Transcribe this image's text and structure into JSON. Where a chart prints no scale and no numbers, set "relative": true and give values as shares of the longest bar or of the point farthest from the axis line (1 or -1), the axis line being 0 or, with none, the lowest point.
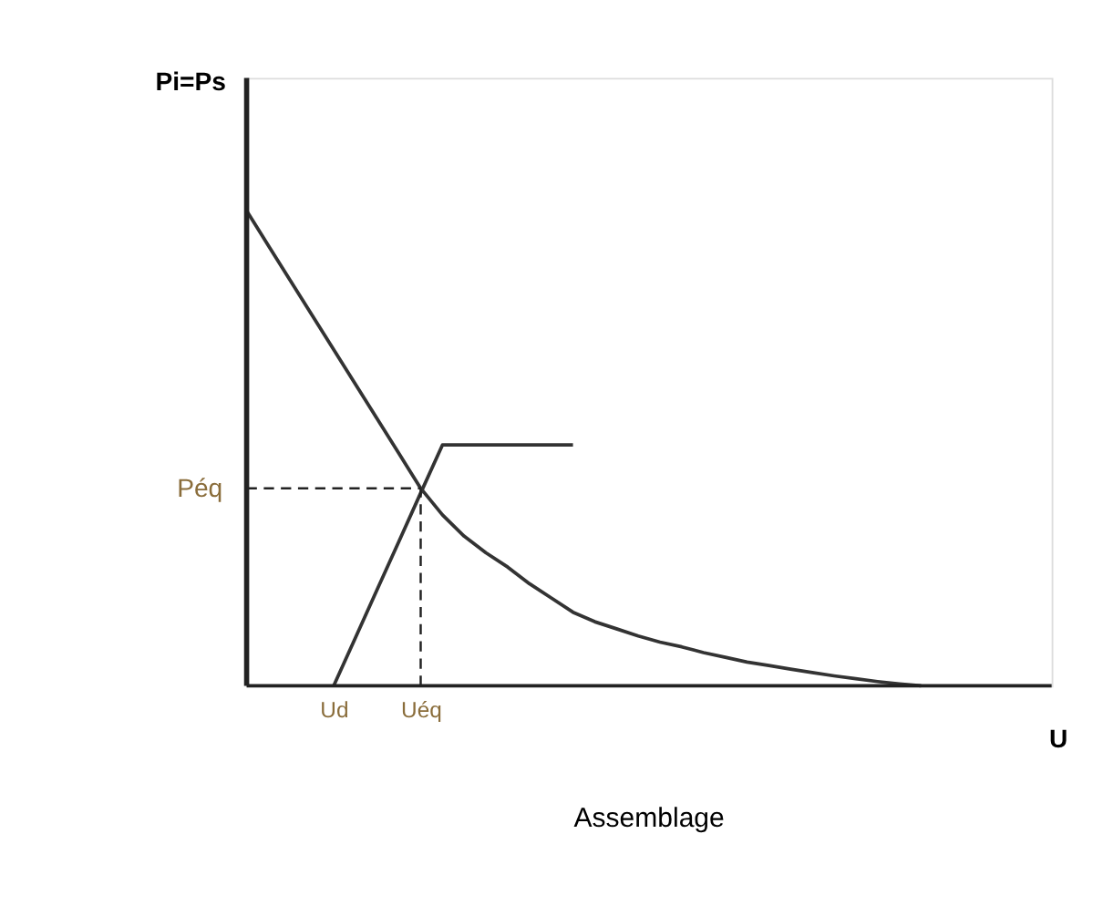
{
  "chart_data": {
    "type": "line",
    "title": "Assemblage",
    "xlabel": "U",
    "ylabel": "Pi=Ps",
    "relative": true,
    "categories": [
      null,
      null,
      null,
      null,
      "Ud",
      null,
      null,
      null,
      "Uéq",
      null,
      null,
      null,
      null,
      null,
      null,
      null,
      null,
      null,
      null,
      null,
      null,
      null,
      null,
      null,
      null,
      null,
      null,
      null,
      null,
      null,
      null,
      null,
      null,
      null,
      null,
      null,
      null,
      null
    ],
    "series": [
      {
        "color": "#333333",
        "values": [
          1,
          0.927,
          0.854,
          0.781,
          0.708,
          0.635,
          0.562,
          0.489,
          0.416,
          0.36,
          0.315,
          0.28,
          0.25,
          0.215,
          0.185,
          0.155,
          0.135,
          0.12,
          0.105,
          0.092,
          0.082,
          0.07,
          0.06,
          0.05,
          0.043,
          0.035,
          0.028,
          0.021,
          0.015,
          0.009,
          0.004,
          0,
          null,
          null,
          null,
          null,
          null,
          null
        ]
      },
      {
        "color": "#333333",
        "values": [
          null,
          null,
          null,
          null,
          0,
          0.101,
          0.203,
          0.304,
          0.406,
          0.507,
          0.507,
          0.507,
          0.507,
          0.507,
          0.507,
          0.507,
          null,
          null,
          null,
          null,
          null,
          null,
          null,
          null,
          null,
          null,
          null,
          null,
          null,
          null,
          null,
          null,
          null,
          null,
          null,
          null,
          null,
          null
        ]
      }
    ],
    "ref_lines": [
      {
        "axis": "y",
        "value": 0.416,
        "label": "Péq",
        "line_style": "dashed"
      },
      {
        "axis": "x",
        "value": "Uéq",
        "line_style": "dashed"
      }
    ],
    "grid": false,
    "marker": "none",
    "line_style": "solid"
  }
}
